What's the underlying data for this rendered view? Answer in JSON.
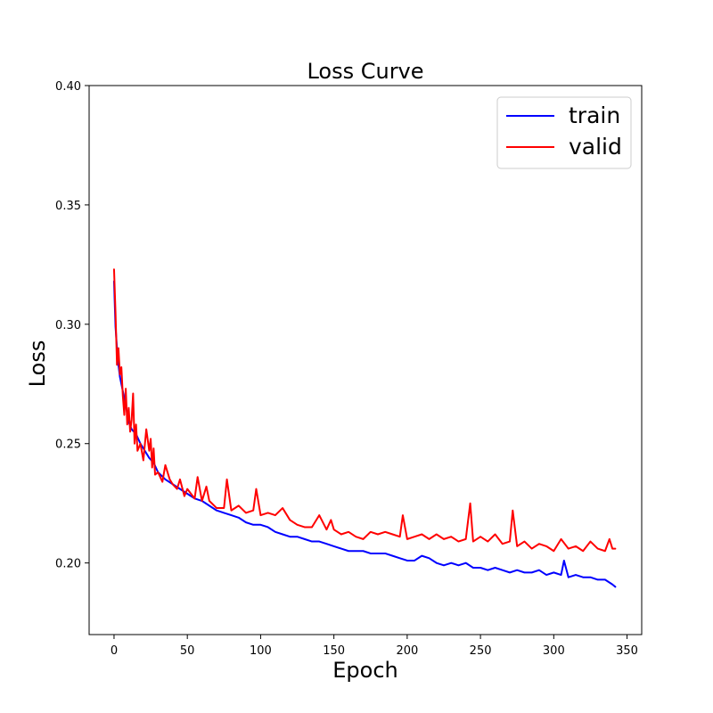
{
  "chart_data": {
    "type": "line",
    "title": "Loss Curve",
    "xlabel": "Epoch",
    "ylabel": "Loss",
    "xlim": [
      -17,
      360
    ],
    "ylim": [
      0.17,
      0.4
    ],
    "xticks": [
      0,
      50,
      100,
      150,
      200,
      250,
      300,
      350
    ],
    "yticks": [
      0.2,
      0.25,
      0.3,
      0.35,
      0.4
    ],
    "xtick_labels": [
      "0",
      "50",
      "100",
      "150",
      "200",
      "250",
      "300",
      "350"
    ],
    "ytick_labels": [
      "0.20",
      "0.25",
      "0.30",
      "0.35",
      "0.40"
    ],
    "grid": false,
    "legend_position": "top-right",
    "series": [
      {
        "name": "train",
        "color": "#0000ff",
        "x": [
          0,
          1,
          2,
          3,
          4,
          5,
          6,
          8,
          10,
          12,
          15,
          18,
          21,
          24,
          27,
          30,
          35,
          40,
          45,
          50,
          55,
          60,
          65,
          70,
          75,
          80,
          85,
          90,
          95,
          100,
          105,
          110,
          115,
          120,
          125,
          130,
          135,
          140,
          145,
          150,
          155,
          160,
          165,
          170,
          175,
          180,
          185,
          190,
          195,
          200,
          205,
          210,
          215,
          220,
          225,
          230,
          235,
          240,
          245,
          250,
          255,
          260,
          265,
          270,
          275,
          280,
          285,
          290,
          295,
          300,
          305,
          307,
          310,
          315,
          320,
          325,
          330,
          335,
          340,
          342
        ],
        "values": [
          0.318,
          0.299,
          0.29,
          0.283,
          0.278,
          0.275,
          0.272,
          0.266,
          0.259,
          0.256,
          0.254,
          0.25,
          0.247,
          0.244,
          0.242,
          0.238,
          0.235,
          0.233,
          0.231,
          0.229,
          0.227,
          0.226,
          0.224,
          0.222,
          0.221,
          0.22,
          0.219,
          0.217,
          0.216,
          0.216,
          0.215,
          0.213,
          0.212,
          0.211,
          0.211,
          0.21,
          0.209,
          0.209,
          0.208,
          0.207,
          0.206,
          0.205,
          0.205,
          0.205,
          0.204,
          0.204,
          0.204,
          0.203,
          0.202,
          0.201,
          0.201,
          0.203,
          0.202,
          0.2,
          0.199,
          0.2,
          0.199,
          0.2,
          0.198,
          0.198,
          0.197,
          0.198,
          0.197,
          0.196,
          0.197,
          0.196,
          0.196,
          0.197,
          0.195,
          0.196,
          0.195,
          0.201,
          0.194,
          0.195,
          0.194,
          0.194,
          0.193,
          0.193,
          0.191,
          0.19
        ]
      },
      {
        "name": "valid",
        "color": "#ff0000",
        "x": [
          0,
          1,
          2,
          3,
          4,
          5,
          6,
          7,
          8,
          9,
          10,
          11,
          12,
          13,
          14,
          15,
          16,
          18,
          20,
          22,
          24,
          25,
          26,
          27,
          28,
          30,
          33,
          35,
          38,
          40,
          43,
          45,
          48,
          50,
          55,
          57,
          60,
          63,
          65,
          70,
          75,
          77,
          80,
          85,
          90,
          95,
          97,
          100,
          105,
          110,
          115,
          120,
          125,
          130,
          135,
          140,
          145,
          148,
          150,
          155,
          160,
          165,
          170,
          175,
          180,
          185,
          190,
          195,
          197,
          200,
          205,
          210,
          215,
          220,
          225,
          230,
          235,
          240,
          243,
          245,
          250,
          255,
          260,
          265,
          270,
          272,
          275,
          280,
          285,
          290,
          295,
          300,
          305,
          310,
          315,
          320,
          325,
          330,
          335,
          338,
          340,
          342
        ],
        "values": [
          0.323,
          0.305,
          0.283,
          0.29,
          0.279,
          0.282,
          0.27,
          0.262,
          0.273,
          0.258,
          0.265,
          0.255,
          0.26,
          0.271,
          0.25,
          0.258,
          0.247,
          0.25,
          0.243,
          0.256,
          0.247,
          0.252,
          0.24,
          0.248,
          0.237,
          0.238,
          0.234,
          0.241,
          0.235,
          0.233,
          0.231,
          0.235,
          0.228,
          0.231,
          0.227,
          0.236,
          0.226,
          0.232,
          0.226,
          0.223,
          0.223,
          0.235,
          0.222,
          0.224,
          0.221,
          0.222,
          0.231,
          0.22,
          0.221,
          0.22,
          0.223,
          0.218,
          0.216,
          0.215,
          0.215,
          0.22,
          0.214,
          0.218,
          0.214,
          0.212,
          0.213,
          0.211,
          0.21,
          0.213,
          0.212,
          0.213,
          0.212,
          0.211,
          0.22,
          0.21,
          0.211,
          0.212,
          0.21,
          0.212,
          0.21,
          0.211,
          0.209,
          0.21,
          0.225,
          0.209,
          0.211,
          0.209,
          0.212,
          0.208,
          0.209,
          0.222,
          0.207,
          0.209,
          0.206,
          0.208,
          0.207,
          0.205,
          0.21,
          0.206,
          0.207,
          0.205,
          0.209,
          0.206,
          0.205,
          0.21,
          0.206,
          0.206
        ]
      }
    ]
  }
}
